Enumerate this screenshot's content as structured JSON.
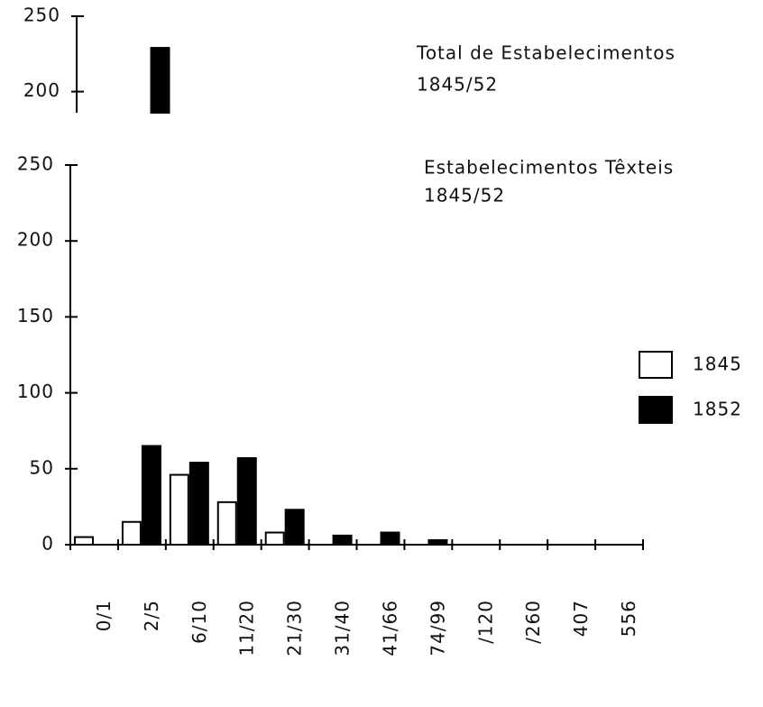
{
  "chart_data": [
    {
      "type": "bar",
      "title": "Total de Estabelecimentos",
      "subtitle": "1845/52",
      "categories": [
        null,
        null,
        null,
        null,
        null,
        null,
        null,
        null,
        null,
        null,
        null,
        null
      ],
      "values": [
        null,
        229,
        null,
        null,
        null,
        null,
        null,
        null,
        null,
        null,
        null,
        null
      ],
      "color": "#000000",
      "ylim": [
        186,
        250
      ],
      "yticks": [
        200,
        250
      ]
    },
    {
      "type": "bar",
      "title": "Estabelecimentos Têxteis",
      "subtitle": "1845/52",
      "categories": [
        "0/1",
        "2/5",
        "6/10",
        "11/20",
        "21/30",
        "31/40",
        "41/66",
        "74/99",
        "/120",
        "/260",
        "407",
        "556"
      ],
      "series": [
        {
          "name": "1845",
          "color": "#ffffff",
          "values": [
            5,
            15,
            46,
            28,
            8,
            0,
            0,
            0,
            0,
            0,
            0,
            0
          ]
        },
        {
          "name": "1852",
          "color": "#000000",
          "values": [
            0,
            65,
            54,
            57,
            23,
            6,
            8,
            3,
            0,
            0,
            0,
            0
          ]
        }
      ],
      "ylim": [
        0,
        250
      ],
      "yticks": [
        0,
        50,
        100,
        150,
        200,
        250
      ],
      "legend": "right"
    }
  ]
}
